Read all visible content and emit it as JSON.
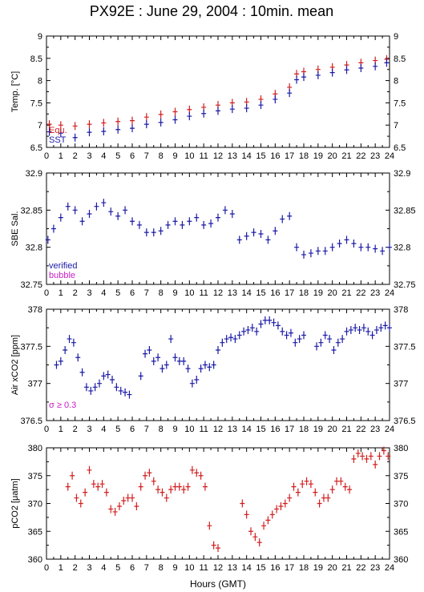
{
  "title": "PX92E : June 29, 2004 : 10min. mean",
  "xlabel": "Hours (GMT)",
  "colors": {
    "blue": "#1a1aa6",
    "red": "#d21e1e",
    "magenta": "#c81ec8",
    "axis": "#000000"
  },
  "chart_data": [
    {
      "type": "scatter",
      "ylabel": "Temp. [°C]",
      "xlim": [
        0,
        24
      ],
      "ylim": [
        6.5,
        9
      ],
      "yticks": [
        "6.5",
        "7",
        "7.5",
        "8",
        "8.5",
        "9"
      ],
      "xticks": [
        "0",
        "1",
        "2",
        "3",
        "4",
        "5",
        "6",
        "7",
        "8",
        "9",
        "10",
        "11",
        "12",
        "13",
        "14",
        "15",
        "16",
        "17",
        "18",
        "19",
        "20",
        "21",
        "22",
        "23",
        "24"
      ],
      "grid": false,
      "legend_position": "bottom-left",
      "series": [
        {
          "name": "Equ.",
          "color": "#d21e1e",
          "x": [
            0.2,
            1,
            2,
            3,
            4,
            5,
            6,
            7,
            8,
            9,
            10,
            11,
            12,
            13,
            14,
            15,
            16,
            17,
            17.5,
            18,
            19,
            20,
            21,
            22,
            23,
            23.8
          ],
          "y": [
            7.02,
            7.0,
            6.98,
            7.02,
            7.05,
            7.08,
            7.1,
            7.18,
            7.24,
            7.3,
            7.35,
            7.4,
            7.45,
            7.5,
            7.52,
            7.58,
            7.7,
            7.85,
            8.15,
            8.2,
            8.25,
            8.3,
            8.35,
            8.4,
            8.45,
            8.48
          ]
        },
        {
          "name": "SST",
          "color": "#1a1aa6",
          "x": [
            0.2,
            1,
            2,
            3,
            4,
            5,
            6,
            7,
            8,
            9,
            10,
            11,
            12,
            13,
            14,
            15,
            16,
            17,
            17.5,
            18,
            19,
            20,
            21,
            22,
            23,
            23.8
          ],
          "y": [
            6.85,
            6.82,
            6.72,
            6.84,
            6.86,
            6.9,
            6.93,
            7.02,
            7.06,
            7.12,
            7.2,
            7.26,
            7.32,
            7.36,
            7.38,
            7.45,
            7.58,
            7.72,
            8.02,
            8.08,
            8.12,
            8.18,
            8.24,
            8.28,
            8.32,
            8.4
          ]
        }
      ]
    },
    {
      "type": "scatter",
      "ylabel": "SBE Sal.",
      "xlim": [
        0,
        24
      ],
      "ylim": [
        32.75,
        32.9
      ],
      "yticks": [
        "32.75",
        "32.8",
        "32.85",
        "32.9"
      ],
      "xticks": [
        "0",
        "1",
        "2",
        "3",
        "4",
        "5",
        "6",
        "7",
        "8",
        "9",
        "10",
        "11",
        "12",
        "13",
        "14",
        "15",
        "16",
        "17",
        "18",
        "19",
        "20",
        "21",
        "22",
        "23",
        "24"
      ],
      "grid": false,
      "legend_position": "bottom-left",
      "legend": [
        {
          "label": "verified",
          "color": "#1a1aa6"
        },
        {
          "label": "bubble",
          "color": "#c81ec8"
        }
      ],
      "series": [
        {
          "name": "verified",
          "color": "#1a1aa6",
          "x": [
            0.1,
            0.5,
            1,
            1.5,
            2,
            2.5,
            3,
            3.5,
            4,
            4.5,
            5,
            5.5,
            6,
            6.5,
            7,
            7.5,
            8,
            8.5,
            9,
            9.5,
            10,
            10.5,
            11,
            11.5,
            12,
            12.5,
            13,
            13.5,
            14,
            14.5,
            15,
            15.5,
            16,
            16.5,
            17,
            17.5,
            18,
            18.5,
            19,
            19.5,
            20,
            20.5,
            21,
            21.5,
            22,
            22.5,
            23,
            23.5,
            24
          ],
          "y": [
            32.81,
            32.825,
            32.84,
            32.855,
            32.85,
            32.835,
            32.845,
            32.855,
            32.86,
            32.848,
            32.842,
            32.85,
            32.835,
            32.83,
            32.82,
            32.82,
            32.822,
            32.83,
            32.835,
            32.83,
            32.835,
            32.84,
            32.83,
            32.832,
            32.84,
            32.85,
            32.845,
            32.81,
            32.815,
            32.82,
            32.818,
            32.81,
            32.822,
            32.838,
            32.842,
            32.8,
            32.79,
            32.792,
            32.795,
            32.795,
            32.8,
            32.805,
            32.81,
            32.805,
            32.8,
            32.8,
            32.798,
            32.795,
            32.8
          ]
        }
      ]
    },
    {
      "type": "scatter",
      "ylabel": "Air xCO2 [ppm]",
      "annotation": "σ ≥ 0.3",
      "xlim": [
        0,
        24
      ],
      "ylim": [
        376.5,
        378
      ],
      "yticks": [
        "376.5",
        "377",
        "377.5",
        "378"
      ],
      "xticks": [
        "0",
        "1",
        "2",
        "3",
        "4",
        "5",
        "6",
        "7",
        "8",
        "9",
        "10",
        "11",
        "12",
        "13",
        "14",
        "15",
        "16",
        "17",
        "18",
        "19",
        "20",
        "21",
        "22",
        "23",
        "24"
      ],
      "grid": false,
      "series": [
        {
          "name": "",
          "color": "#1a1aa6",
          "x": [
            0.7,
            1.0,
            1.3,
            1.6,
            1.9,
            2.2,
            2.5,
            2.8,
            3.1,
            3.4,
            3.7,
            4.0,
            4.3,
            4.6,
            4.9,
            5.2,
            5.5,
            5.8,
            6.6,
            6.9,
            7.2,
            7.5,
            7.8,
            8.1,
            8.4,
            8.7,
            9.0,
            9.3,
            9.6,
            9.9,
            10.2,
            10.5,
            10.8,
            11.1,
            11.4,
            11.7,
            12.0,
            12.3,
            12.6,
            12.9,
            13.2,
            13.5,
            13.8,
            14.1,
            14.4,
            14.7,
            15.0,
            15.3,
            15.6,
            15.9,
            16.2,
            16.5,
            16.8,
            17.1,
            17.4,
            17.7,
            18.0,
            18.9,
            19.2,
            19.5,
            19.8,
            20.1,
            20.4,
            20.7,
            21.0,
            21.3,
            21.6,
            21.9,
            22.2,
            22.5,
            22.8,
            23.1,
            23.4,
            23.7,
            24.0
          ],
          "y": [
            377.25,
            377.3,
            377.45,
            377.6,
            377.55,
            377.35,
            377.15,
            376.95,
            376.9,
            376.95,
            377.0,
            377.1,
            377.12,
            377.05,
            376.95,
            376.9,
            376.88,
            376.85,
            377.1,
            377.4,
            377.45,
            377.3,
            377.35,
            377.2,
            377.25,
            377.6,
            377.35,
            377.3,
            377.3,
            377.2,
            377.0,
            377.05,
            377.2,
            377.25,
            377.22,
            377.25,
            377.45,
            377.55,
            377.6,
            377.62,
            377.6,
            377.65,
            377.7,
            377.72,
            377.75,
            377.7,
            377.8,
            377.85,
            377.85,
            377.82,
            377.78,
            377.7,
            377.65,
            377.68,
            377.55,
            377.6,
            377.65,
            377.5,
            377.55,
            377.65,
            377.6,
            377.45,
            377.55,
            377.6,
            377.7,
            377.72,
            377.75,
            377.72,
            377.75,
            377.7,
            377.65,
            377.72,
            377.75,
            377.78,
            377.75
          ]
        }
      ]
    },
    {
      "type": "scatter",
      "ylabel": "pCO2 [μatm]",
      "xlim": [
        0,
        24
      ],
      "ylim": [
        360,
        380
      ],
      "yticks": [
        "360",
        "365",
        "370",
        "375",
        "380"
      ],
      "xticks": [
        "0",
        "1",
        "2",
        "3",
        "4",
        "5",
        "6",
        "7",
        "8",
        "9",
        "10",
        "11",
        "12",
        "13",
        "14",
        "15",
        "16",
        "17",
        "18",
        "19",
        "20",
        "21",
        "22",
        "23",
        "24"
      ],
      "grid": false,
      "series": [
        {
          "name": "",
          "color": "#d21e1e",
          "x": [
            1.5,
            1.8,
            2.1,
            2.4,
            2.7,
            3.0,
            3.3,
            3.6,
            3.9,
            4.2,
            4.5,
            4.8,
            5.1,
            5.4,
            5.7,
            6.0,
            6.3,
            6.6,
            6.9,
            7.2,
            7.5,
            7.8,
            8.1,
            8.4,
            8.7,
            9.0,
            9.3,
            9.6,
            9.9,
            10.2,
            10.5,
            10.8,
            11.1,
            11.4,
            11.7,
            12.0,
            13.7,
            14.0,
            14.3,
            14.6,
            14.9,
            15.2,
            15.5,
            15.8,
            16.1,
            16.4,
            16.7,
            17.0,
            17.3,
            17.6,
            17.9,
            18.2,
            18.5,
            18.8,
            19.1,
            19.4,
            19.7,
            20.0,
            20.3,
            20.6,
            20.9,
            21.2,
            21.5,
            21.8,
            22.1,
            22.4,
            22.7,
            23.0,
            23.3,
            23.6,
            23.9
          ],
          "y": [
            373,
            375,
            371,
            370,
            372,
            376,
            373.5,
            373,
            373.5,
            372,
            369,
            368.5,
            369.5,
            370.5,
            371,
            371,
            369.5,
            373,
            375,
            375.5,
            374,
            372.5,
            372,
            371,
            372.5,
            373,
            373,
            372.5,
            373,
            376,
            375.5,
            375,
            373,
            366,
            362.5,
            362,
            370,
            368,
            365,
            364,
            363,
            366,
            367,
            368,
            369,
            369.5,
            370,
            371,
            373,
            372,
            373.5,
            374,
            373.5,
            372,
            370,
            371,
            371,
            372.5,
            374,
            374,
            373,
            372.5,
            378,
            379,
            378.5,
            378,
            378.5,
            377,
            378.5,
            379.5,
            378.5
          ]
        }
      ]
    }
  ]
}
